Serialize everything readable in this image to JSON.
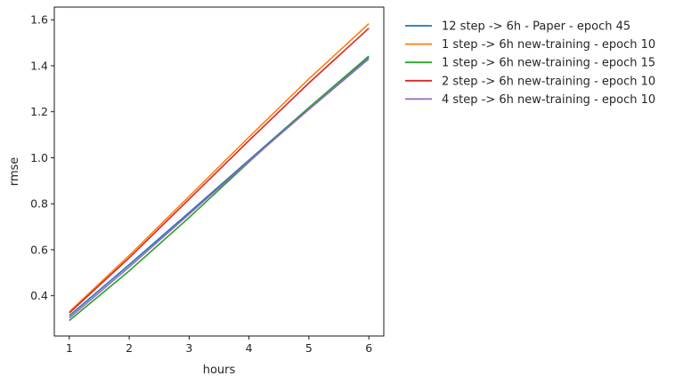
{
  "chart_data": {
    "type": "line",
    "title": "",
    "xlabel": "hours",
    "ylabel": "rmse",
    "x": [
      1,
      2,
      3,
      4,
      5,
      6
    ],
    "xlim": [
      0.75,
      6.25
    ],
    "ylim": [
      0.225,
      1.655
    ],
    "xticks": [
      "1",
      "2",
      "3",
      "4",
      "5",
      "6"
    ],
    "yticks": [
      "0.4",
      "0.6",
      "0.8",
      "1.0",
      "1.2",
      "1.4",
      "1.6"
    ],
    "ytick_values": [
      0.4,
      0.6,
      0.8,
      1.0,
      1.2,
      1.4,
      1.6
    ],
    "grid": false,
    "legend_position": "outside-right",
    "series": [
      {
        "name": "12 step -> 6h - Paper - epoch 45",
        "color": "#1f77b4",
        "values": [
          0.313,
          0.535,
          0.762,
          0.99,
          1.218,
          1.438
        ]
      },
      {
        "name": "1 step -> 6h new-training - epoch 10",
        "color": "#ff7f0e",
        "values": [
          0.33,
          0.575,
          0.832,
          1.09,
          1.343,
          1.583
        ]
      },
      {
        "name": "1 step -> 6h new-training - epoch 15",
        "color": "#2ca02c",
        "values": [
          0.292,
          0.508,
          0.74,
          0.982,
          1.218,
          1.442
        ]
      },
      {
        "name": "2 step -> 6h new-training - epoch 10",
        "color": "#d62728",
        "values": [
          0.325,
          0.565,
          0.82,
          1.075,
          1.325,
          1.563
        ]
      },
      {
        "name": "4 step -> 6h new-training - epoch 10",
        "color": "#9467bd",
        "values": [
          0.303,
          0.525,
          0.755,
          0.985,
          1.21,
          1.43
        ]
      }
    ]
  }
}
